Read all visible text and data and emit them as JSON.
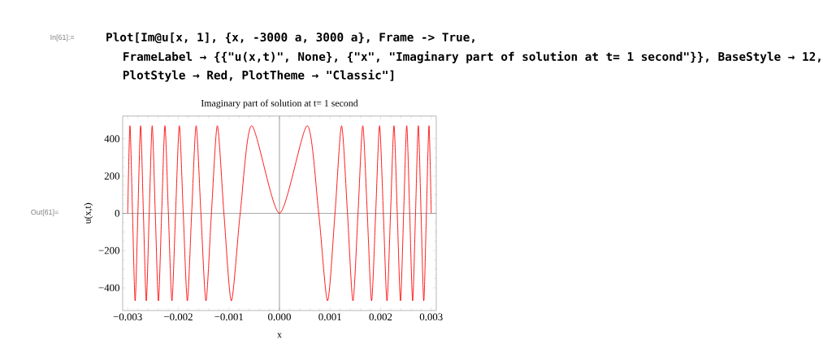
{
  "chart_data": {
    "type": "line",
    "title": "Imaginary part of solution at t= 1 second",
    "xlabel": "x",
    "ylabel": "u(x,t)",
    "x": [
      -0.003,
      -0.002956,
      -0.002905,
      -0.002853,
      -0.002799,
      -0.002745,
      -0.00269,
      -0.002633,
      -0.002575,
      -0.002516,
      -0.002455,
      -0.002393,
      -0.002329,
      -0.002264,
      -0.002196,
      -0.002126,
      -0.002054,
      -0.001979,
      -0.001902,
      -0.001821,
      -0.001736,
      -0.001647,
      -0.001553,
      -0.001453,
      -0.001345,
      -0.001228,
      -0.001098,
      -0.000951,
      -0.000776,
      -0.000549,
      0,
      0.000549,
      0.000776,
      0.000951,
      0.001098,
      0.001228,
      0.001345,
      0.001453,
      0.001553,
      0.001647,
      0.001736,
      0.001821,
      0.001902,
      0.001979,
      0.002054,
      0.002126,
      0.002196,
      0.002264,
      0.002329,
      0.002393,
      0.002455,
      0.002516,
      0.002575,
      0.002633,
      0.00269,
      0.002745,
      0.002799,
      0.002853,
      0.002905,
      0.002956,
      0.003
    ],
    "series": [
      {
        "color": "#ff0000",
        "values": [
          0,
          470,
          0,
          -470,
          0,
          470,
          0,
          -470,
          0,
          470,
          0,
          -470,
          0,
          470,
          0,
          -470,
          0,
          470,
          0,
          -470,
          0,
          470,
          0,
          -470,
          0,
          470,
          0,
          -470,
          0,
          470,
          0,
          470,
          0,
          -470,
          0,
          470,
          0,
          -470,
          0,
          470,
          0,
          -470,
          0,
          470,
          0,
          -470,
          0,
          470,
          0,
          -470,
          0,
          470,
          0,
          -470,
          0,
          470,
          0,
          -470,
          0,
          470,
          0
        ]
      }
    ],
    "xlim": [
      -0.0031,
      0.0031
    ],
    "ylim": [
      -522,
      522
    ],
    "xticks": [
      {
        "value": -0.003,
        "label": "−0.003"
      },
      {
        "value": -0.002,
        "label": "−0.002"
      },
      {
        "value": -0.001,
        "label": "−0.001"
      },
      {
        "value": 0,
        "label": "0.000"
      },
      {
        "value": 0.001,
        "label": "0.001"
      },
      {
        "value": 0.002,
        "label": "0.002"
      },
      {
        "value": 0.003,
        "label": "0.003"
      }
    ],
    "yticks": [
      {
        "value": -400,
        "label": "−400"
      },
      {
        "value": -200,
        "label": "−200"
      },
      0,
      200,
      400
    ],
    "ref_lines": [
      {
        "axis": "x",
        "value": 0,
        "color": "#555555"
      },
      {
        "axis": "y",
        "value": 0,
        "color": "#222222"
      }
    ],
    "grid": false,
    "marker": "none",
    "line_style": "solid",
    "annotations": [
      "In[61]:=",
      "Plot[Im@u[x, 1], {x, -3000 a, 3000 a}, Frame -> True,",
      "FrameLabel → {{\"u(x,t)\", None}, {\"x\", \"Imaginary part of solution at t= 1 second\"}}, BaseStyle → 12,",
      "PlotStyle → Red, PlotTheme → \"Classic\"]",
      "Out[61]="
    ]
  }
}
